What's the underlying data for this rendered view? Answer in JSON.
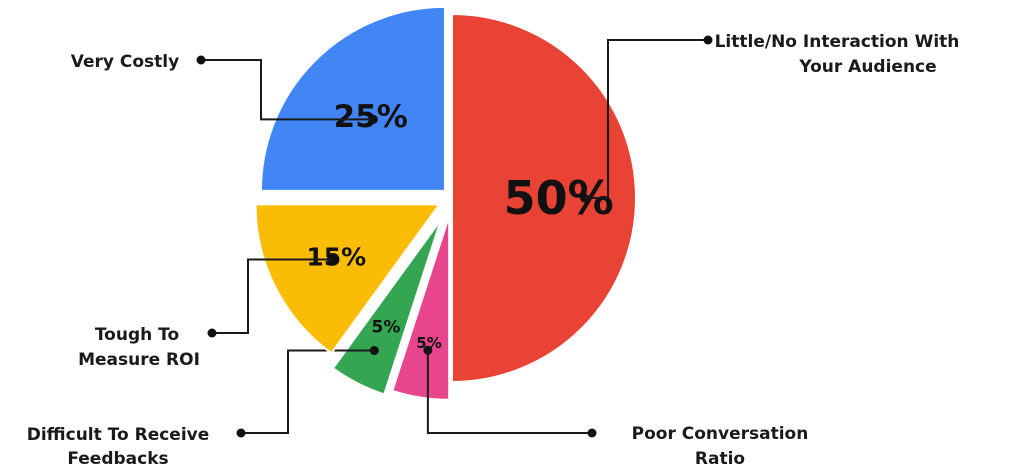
{
  "chart_data": {
    "type": "pie",
    "slices": [
      {
        "label": "Little/No Interaction With Your Audience",
        "label_lines": [
          "Little/No Interaction With",
          "Your Audience"
        ],
        "value": 50,
        "value_label": "50%",
        "color": "#E84335"
      },
      {
        "label": "Poor Conversation Ratio",
        "label_lines": [
          "Poor Conversation",
          "Ratio"
        ],
        "value": 5,
        "value_label": "5%",
        "color": "#E7468C"
      },
      {
        "label": "Difficult To Receive Feedbacks",
        "label_lines": [
          "Difficult To Receive",
          "Feedbacks"
        ],
        "value": 5,
        "value_label": "5%",
        "color": "#34A652"
      },
      {
        "label": "Tough To Measure ROI",
        "label_lines": [
          "Tough To",
          "Measure ROI"
        ],
        "value": 15,
        "value_label": "15%",
        "color": "#FBBC06"
      },
      {
        "label": "Very Costly",
        "label_lines": [
          "Very Costly"
        ],
        "value": 25,
        "value_label": "25%",
        "color": "#4285F4"
      }
    ],
    "exploded": true,
    "legend": "none"
  }
}
